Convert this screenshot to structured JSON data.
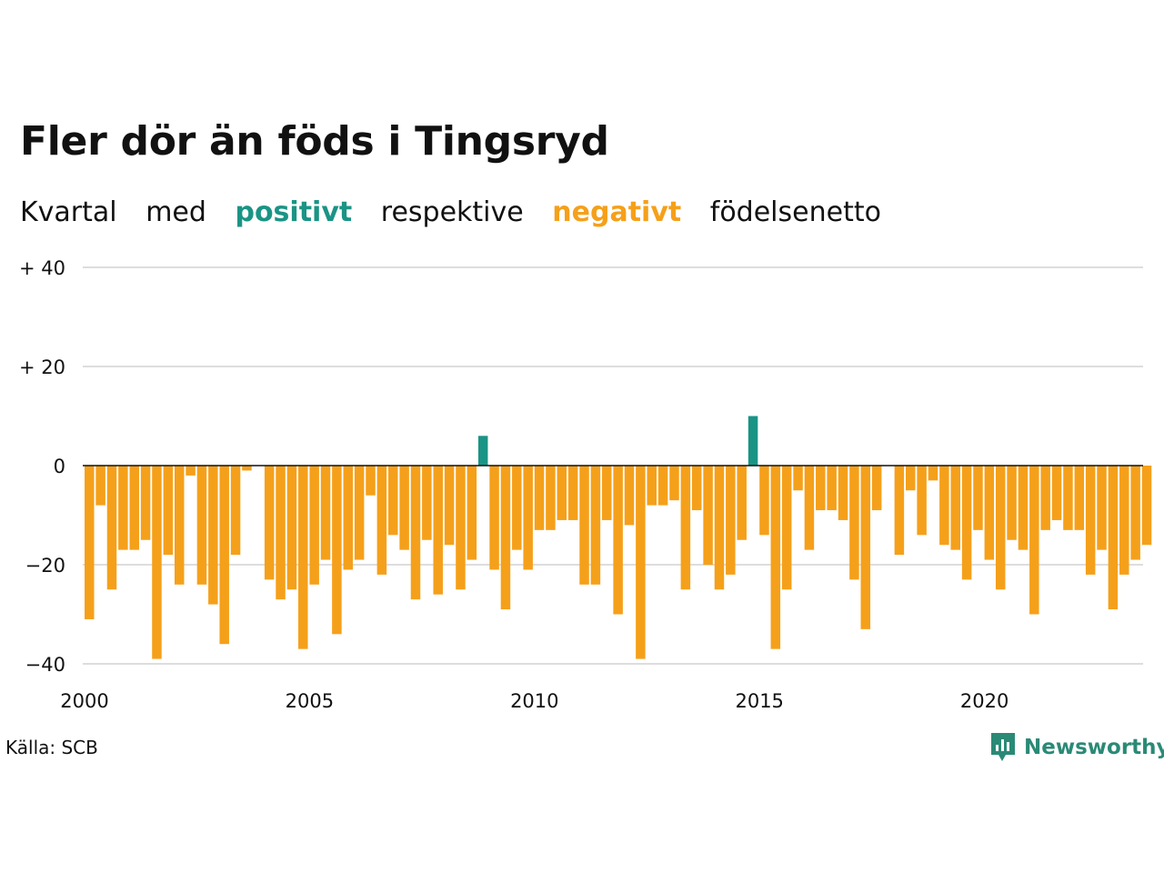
{
  "title": "Fler dör än föds i Tingsryd",
  "subtitle": {
    "w1": "Kvartal",
    "w2": "med",
    "positive": "positivt",
    "w3": "respektive",
    "negative": "negativt",
    "w4": "födelsenetto"
  },
  "colors": {
    "positive": "#1a9485",
    "negative": "#f5a01a",
    "grid": "#dddddd"
  },
  "source": "Källa: SCB",
  "brand": {
    "name": "Newsworthy",
    "icon": "newsworthy-logo-icon"
  },
  "chart_data": {
    "type": "bar",
    "start": {
      "year": 2000,
      "quarter": 1
    },
    "y_tick_labels": [
      "+ 40",
      "+ 20",
      "0",
      "−20",
      "−40"
    ],
    "y_ticks": [
      40,
      20,
      0,
      -20,
      -40
    ],
    "x_tick_labels": [
      "2000",
      "2005",
      "2010",
      "2015",
      "2020"
    ],
    "ylim": [
      -40,
      40
    ],
    "grid": true,
    "values": [
      -31,
      -8,
      -25,
      -17,
      -17,
      -15,
      -39,
      -18,
      -24,
      -2,
      -24,
      -28,
      -36,
      -18,
      -1,
      null,
      -23,
      -27,
      -25,
      -37,
      -24,
      -19,
      -34,
      -21,
      -19,
      -6,
      -22,
      -14,
      -17,
      -27,
      -15,
      -26,
      -16,
      -25,
      -19,
      6,
      -21,
      -29,
      -17,
      -21,
      -13,
      -13,
      -11,
      -11,
      -24,
      -24,
      -11,
      -30,
      -12,
      -39,
      -8,
      -8,
      -7,
      -25,
      -9,
      -20,
      -25,
      -22,
      -15,
      10,
      -14,
      -37,
      -25,
      -5,
      -17,
      -9,
      -9,
      -11,
      -23,
      -33,
      -9,
      null,
      -18,
      -5,
      -14,
      -3,
      -16,
      -17,
      -23,
      -13,
      -19,
      -25,
      -15,
      -17,
      -30,
      -13,
      -11,
      -13,
      -13,
      -22,
      -17,
      -29,
      -22,
      -19,
      -16
    ]
  }
}
